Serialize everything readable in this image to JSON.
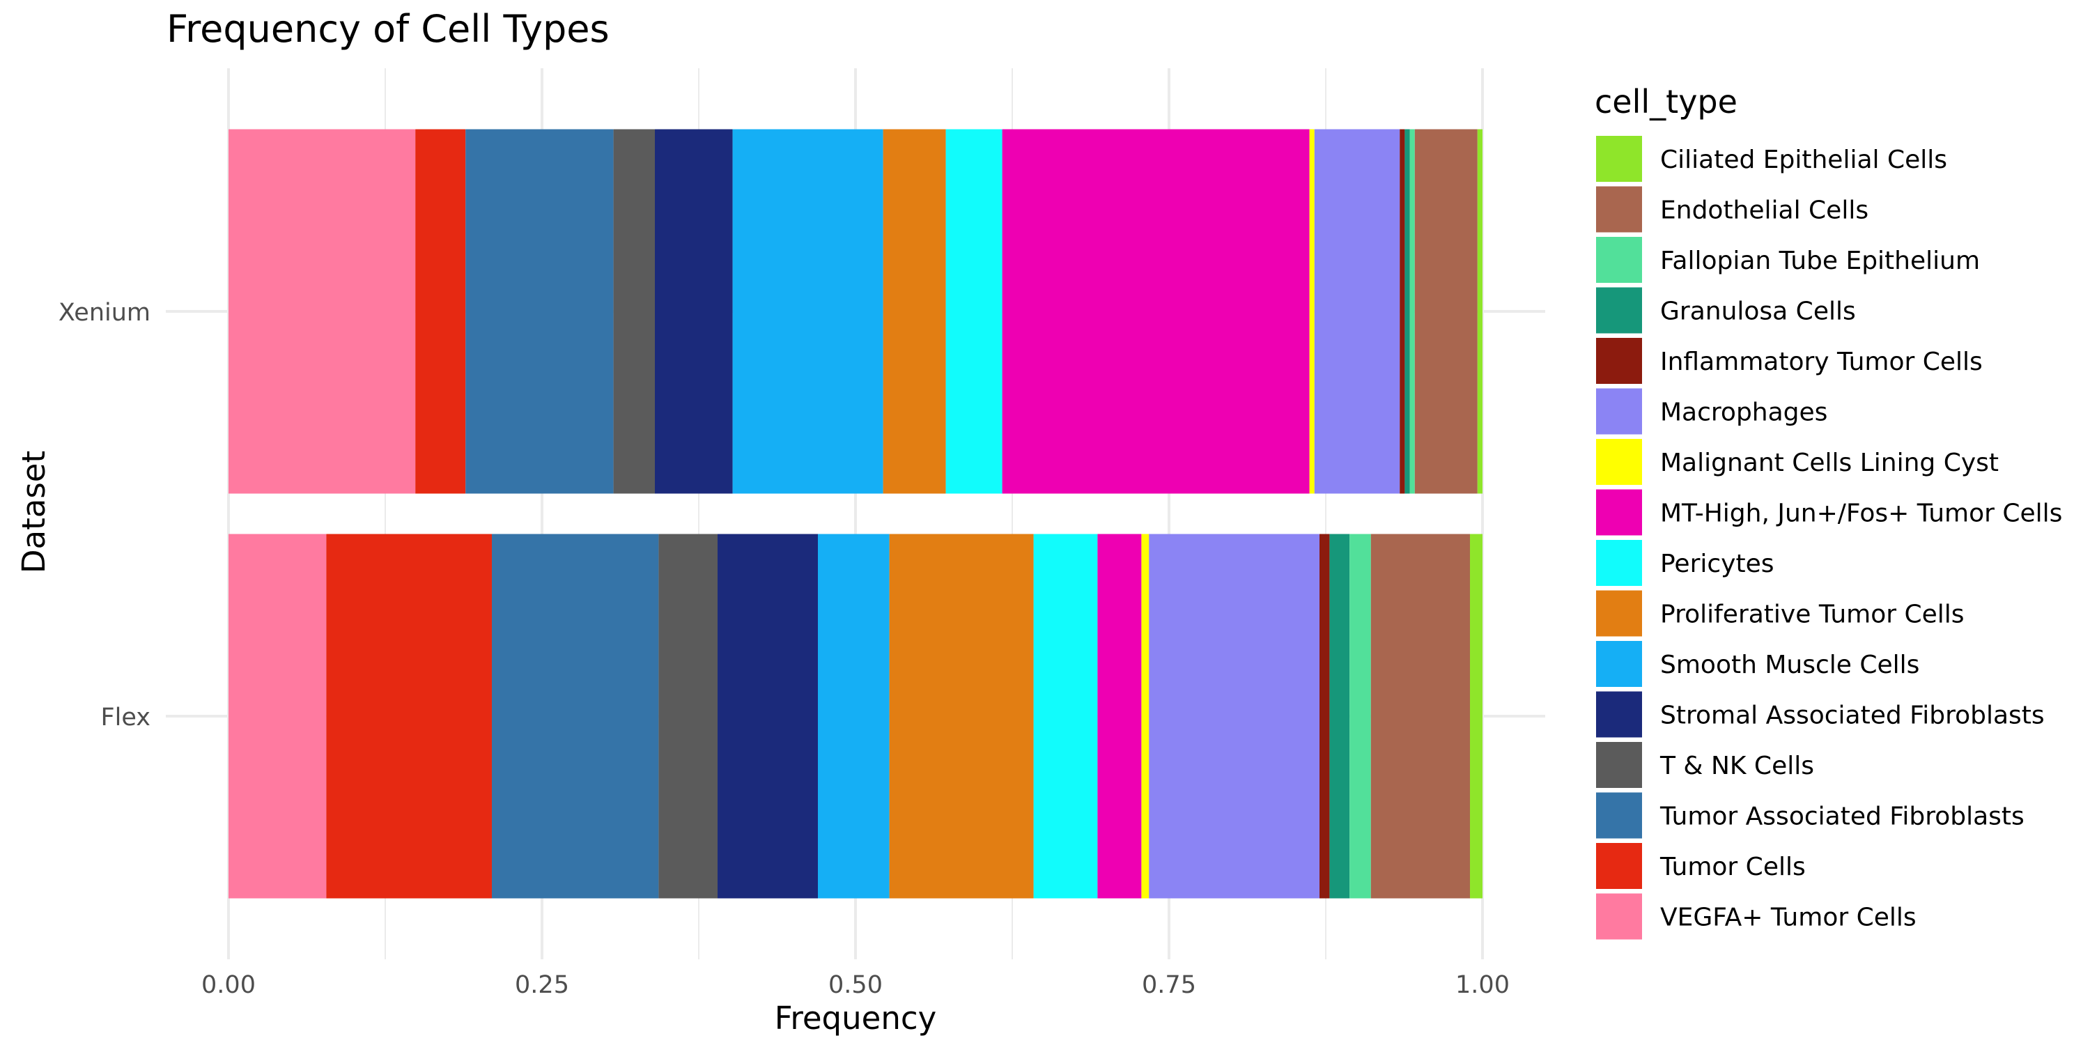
{
  "chart_data": {
    "type": "bar",
    "orientation": "horizontal",
    "stacked": true,
    "title": "Frequency of Cell Types",
    "xlabel": "Frequency",
    "ylabel": "Dataset",
    "categories": [
      "Xenium",
      "Flex"
    ],
    "xlim": [
      0,
      1
    ],
    "xticks": [
      0,
      0.25,
      0.5,
      0.75,
      1
    ],
    "xtick_labels": [
      "0.00",
      "0.25",
      "0.50",
      "0.75",
      "1.00"
    ],
    "grid": true,
    "legend_title": "cell_type",
    "legend_position": "right",
    "series": [
      {
        "name": "Ciliated Epithelial Cells",
        "color": "#8FE52A",
        "values": [
          0.004,
          0.01
        ]
      },
      {
        "name": "Endothelial Cells",
        "color": "#A9664F",
        "values": [
          0.05,
          0.079
        ]
      },
      {
        "name": "Fallopian Tube Epithelium",
        "color": "#52E09A",
        "values": [
          0.004,
          0.017
        ]
      },
      {
        "name": "Granulosa Cells",
        "color": "#16977A",
        "values": [
          0.004,
          0.016
        ]
      },
      {
        "name": "Inflammatory Tumor Cells",
        "color": "#8C1B0E",
        "values": [
          0.004,
          0.008
        ]
      },
      {
        "name": "Macrophages",
        "color": "#8B84F4",
        "values": [
          0.068,
          0.136
        ]
      },
      {
        "name": "Malignant Cells Lining Cyst",
        "color": "#FFFF00",
        "values": [
          0.004,
          0.006
        ]
      },
      {
        "name": "MT-High, Jun+/Fos+ Tumor Cells",
        "color": "#EE00B2",
        "values": [
          0.245,
          0.035
        ]
      },
      {
        "name": "Pericytes",
        "color": "#11FCFC",
        "values": [
          0.045,
          0.051
        ]
      },
      {
        "name": "Proliferative Tumor Cells",
        "color": "#E27E13",
        "values": [
          0.05,
          0.115
        ]
      },
      {
        "name": "Smooth Muscle Cells",
        "color": "#15AFF5",
        "values": [
          0.12,
          0.057
        ]
      },
      {
        "name": "Stromal Associated Fibroblasts",
        "color": "#1B2A7B",
        "values": [
          0.062,
          0.08
        ]
      },
      {
        "name": "T & NK Cells",
        "color": "#5B5B5B",
        "values": [
          0.033,
          0.047
        ]
      },
      {
        "name": "Tumor Associated Fibroblasts",
        "color": "#3574A8",
        "values": [
          0.118,
          0.133
        ]
      },
      {
        "name": "Tumor Cells",
        "color": "#E62912",
        "values": [
          0.04,
          0.132
        ]
      },
      {
        "name": "VEGFA+ Tumor Cells",
        "color": "#FF7AA0",
        "values": [
          0.149,
          0.078
        ]
      }
    ]
  }
}
